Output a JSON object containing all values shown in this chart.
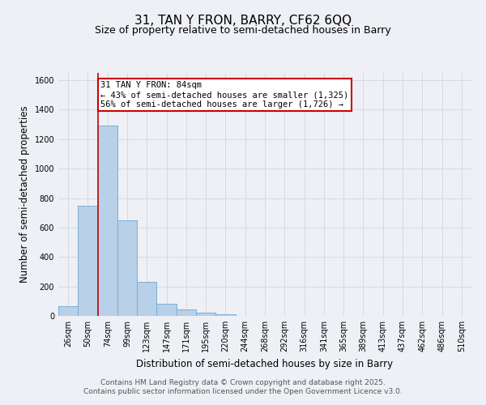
{
  "title": "31, TAN Y FRON, BARRY, CF62 6QQ",
  "subtitle": "Size of property relative to semi-detached houses in Barry",
  "xlabel": "Distribution of semi-detached houses by size in Barry",
  "ylabel": "Number of semi-detached properties",
  "categories": [
    "26sqm",
    "50sqm",
    "74sqm",
    "99sqm",
    "123sqm",
    "147sqm",
    "171sqm",
    "195sqm",
    "220sqm",
    "244sqm",
    "268sqm",
    "292sqm",
    "316sqm",
    "341sqm",
    "365sqm",
    "389sqm",
    "413sqm",
    "437sqm",
    "462sqm",
    "486sqm",
    "510sqm"
  ],
  "values": [
    65,
    750,
    1290,
    650,
    230,
    80,
    42,
    20,
    10,
    0,
    0,
    0,
    0,
    0,
    0,
    0,
    0,
    0,
    0,
    0,
    0
  ],
  "bar_color": "#b8d0e8",
  "bar_edge_color": "#7aafd4",
  "vline_index": 2,
  "annotation_text": "31 TAN Y FRON: 84sqm\n← 43% of semi-detached houses are smaller (1,325)\n56% of semi-detached houses are larger (1,726) →",
  "annotation_box_color": "#ffffff",
  "annotation_box_edge": "#cc0000",
  "vline_color": "#cc0000",
  "ylim": [
    0,
    1650
  ],
  "yticks": [
    0,
    200,
    400,
    600,
    800,
    1000,
    1200,
    1400,
    1600
  ],
  "grid_color": "#d0d8e0",
  "bg_color": "#eef0f5",
  "footer_line1": "Contains HM Land Registry data © Crown copyright and database right 2025.",
  "footer_line2": "Contains public sector information licensed under the Open Government Licence v3.0.",
  "title_fontsize": 11,
  "subtitle_fontsize": 9,
  "axis_label_fontsize": 8.5,
  "tick_fontsize": 7,
  "annotation_fontsize": 7.5,
  "footer_fontsize": 6.5
}
